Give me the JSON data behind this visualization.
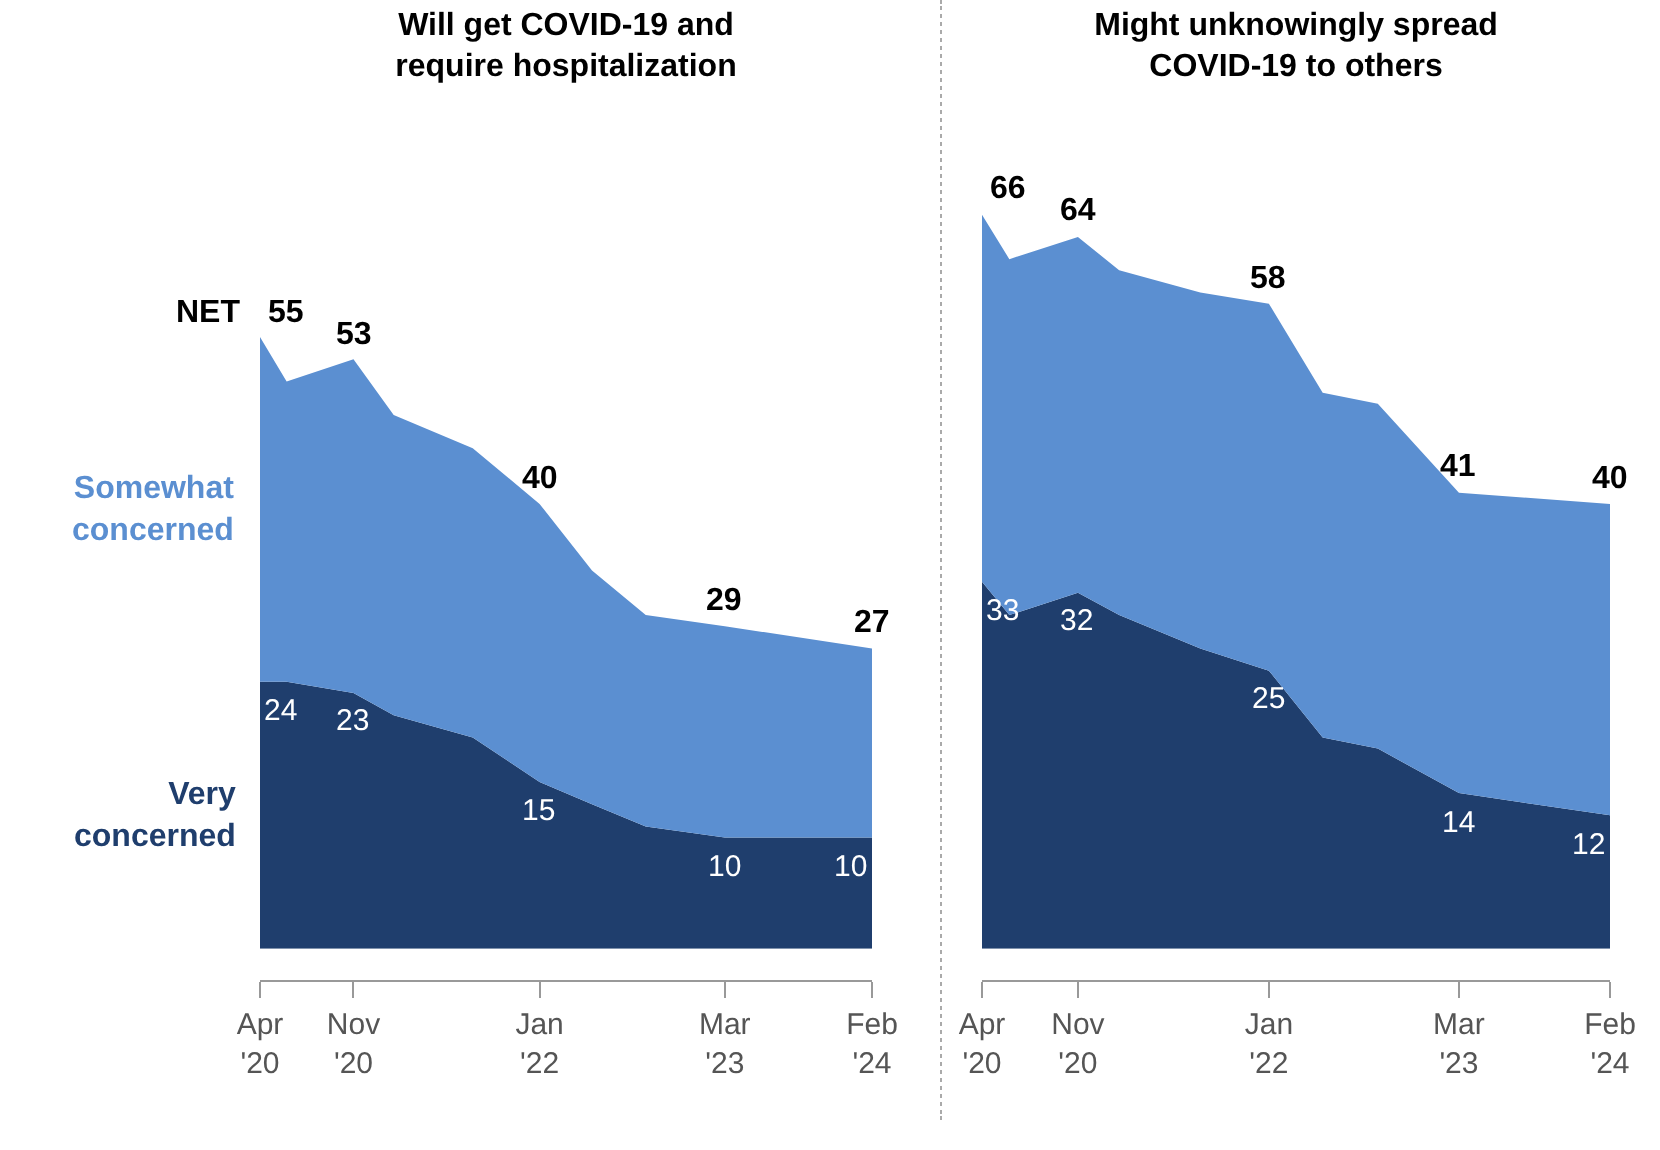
{
  "chart_data": [
    {
      "type": "area",
      "stacked": true,
      "title": "Will get COVID-19 and\nrequire hospitalization",
      "x": [
        "2020-04",
        "2020-06",
        "2020-11",
        "2021-02",
        "2021-08",
        "2022-01",
        "2022-05",
        "2022-09",
        "2023-03",
        "2024-02"
      ],
      "xlim": [
        "2020-04",
        "2024-02"
      ],
      "xticks": [
        {
          "value": "2020-04",
          "label": "Apr\n'20"
        },
        {
          "value": "2020-11",
          "label": "Nov\n'20"
        },
        {
          "value": "2022-01",
          "label": "Jan\n'22"
        },
        {
          "value": "2023-03",
          "label": "Mar\n'23"
        },
        {
          "value": "2024-02",
          "label": "Feb\n'24"
        }
      ],
      "series": [
        {
          "name": "Very\nconcerned",
          "color": "#1f3e6d",
          "values": [
            24,
            24,
            23,
            21,
            19,
            15,
            13,
            11,
            10,
            10
          ],
          "value_labels": [
            "24",
            null,
            "23",
            null,
            null,
            "15",
            null,
            null,
            "10",
            "10"
          ]
        },
        {
          "name": "Somewhat\nconcerned",
          "color": "#5b8fd1",
          "values": [
            31,
            27,
            30,
            27,
            26,
            25,
            21,
            19,
            19,
            17
          ]
        }
      ],
      "totals": [
        "55",
        null,
        "53",
        null,
        null,
        "40",
        null,
        null,
        "29",
        "27"
      ],
      "annotations": [
        "NET"
      ]
    },
    {
      "type": "area",
      "stacked": true,
      "title": "Might unknowingly spread\nCOVID-19 to others",
      "x": [
        "2020-04",
        "2020-06",
        "2020-11",
        "2021-02",
        "2021-08",
        "2022-01",
        "2022-05",
        "2022-09",
        "2023-03",
        "2024-02"
      ],
      "xlim": [
        "2020-04",
        "2024-02"
      ],
      "xticks": [
        {
          "value": "2020-04",
          "label": "Apr\n'20"
        },
        {
          "value": "2020-11",
          "label": "Nov\n'20"
        },
        {
          "value": "2022-01",
          "label": "Jan\n'22"
        },
        {
          "value": "2023-03",
          "label": "Mar\n'23"
        },
        {
          "value": "2024-02",
          "label": "Feb\n'24"
        }
      ],
      "series": [
        {
          "color": "#1f3e6d",
          "values": [
            33,
            30,
            32,
            30,
            27,
            25,
            19,
            18,
            14,
            12
          ],
          "value_labels": [
            "33",
            null,
            "32",
            null,
            null,
            "25",
            null,
            null,
            "14",
            "12"
          ]
        },
        {
          "color": "#5b8fd1",
          "values": [
            33,
            32,
            32,
            31,
            32,
            33,
            31,
            31,
            27,
            28
          ]
        }
      ],
      "totals": [
        "66",
        null,
        "64",
        null,
        null,
        "58",
        null,
        null,
        "41",
        "40"
      ]
    }
  ]
}
